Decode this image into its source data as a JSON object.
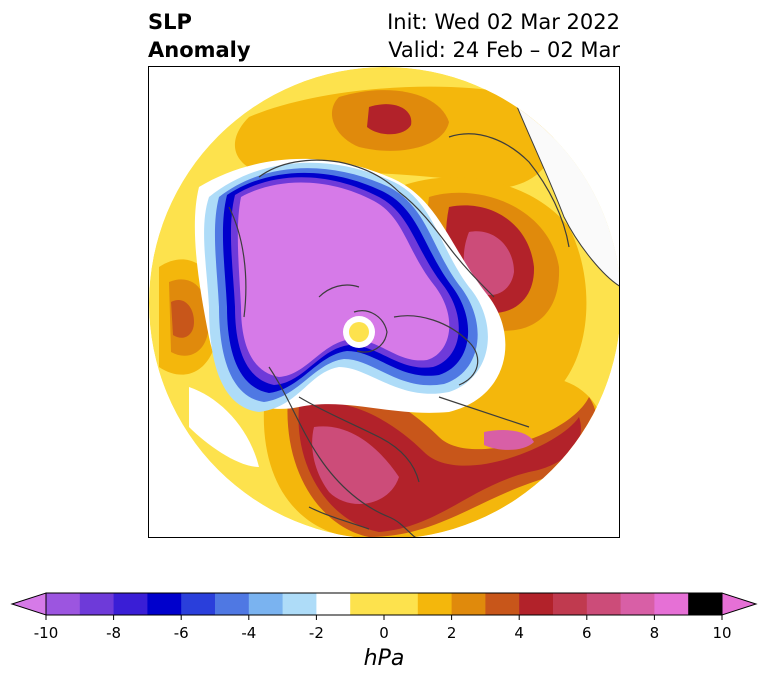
{
  "title": {
    "line1": "SLP",
    "line2": "Anomaly",
    "init": "Init: Wed 02 Mar 2022",
    "valid": "Valid: 24 Feb – 02 Mar"
  },
  "map": {
    "projection": "north-polar-stereographic",
    "variable": "SLP Anomaly",
    "regions": [
      {
        "id": "pacific-low",
        "kind": "low",
        "peak_hpa": -10
      },
      {
        "id": "arctic-low",
        "kind": "low",
        "peak_hpa": -10
      },
      {
        "id": "north-america-high",
        "kind": "high",
        "peak_hpa": 8
      },
      {
        "id": "atlantic-high",
        "kind": "high",
        "peak_hpa": 8
      },
      {
        "id": "europe-high",
        "kind": "high",
        "peak_hpa": 6
      },
      {
        "id": "siberia-high",
        "kind": "high",
        "peak_hpa": 6
      },
      {
        "id": "central-asia-high",
        "kind": "high",
        "peak_hpa": 4
      }
    ]
  },
  "colorbar": {
    "unit": "hPa",
    "ticks": [
      "-10",
      "-8",
      "-6",
      "-4",
      "-2",
      "0",
      "2",
      "4",
      "6",
      "8",
      "10"
    ],
    "tick_values": [
      -10,
      -8,
      -6,
      -4,
      -2,
      0,
      2,
      4,
      6,
      8,
      10
    ],
    "levels": [
      -10,
      -9,
      -8,
      -7,
      -6,
      -5,
      -4,
      -3,
      -2,
      -1,
      1,
      2,
      3,
      4,
      5,
      6,
      7,
      8,
      9,
      10
    ],
    "colors": [
      "#9c55e0",
      "#6e3ad9",
      "#3a1ed6",
      "#0000cc",
      "#2a3fdb",
      "#4f78e3",
      "#7ab3f0",
      "#aedcf8",
      "#ffffff",
      "#fde24d",
      "#f4b70c",
      "#e08a0c",
      "#c8561a",
      "#b2222a",
      "#c03a4f",
      "#cc4c79",
      "#d85fa6",
      "#e670d6"
    ],
    "under_color": "#d67ae8",
    "over_color": "#e670d6"
  }
}
